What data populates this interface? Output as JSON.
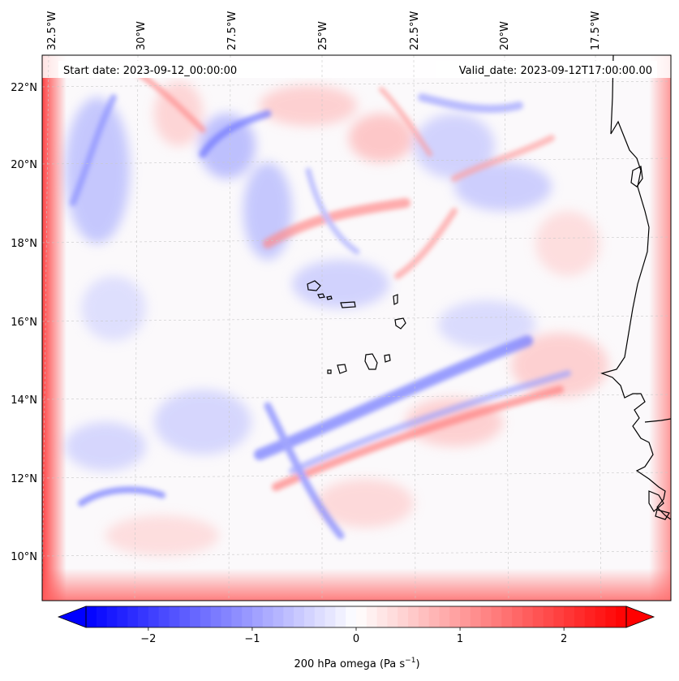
{
  "header": {
    "start_date": "Start date: 2023-09-12_00:00:00",
    "valid_date": "Valid_date: 2023-09-12T17:00:00.00"
  },
  "map": {
    "lon_labels": [
      "32.5°W",
      "30°W",
      "27.5°W",
      "25°W",
      "22.5°W",
      "20°W",
      "17.5°W"
    ],
    "lat_labels": [
      "22°N",
      "20°N",
      "18°N",
      "16°N",
      "14°N",
      "12°N",
      "10°N"
    ],
    "gridlines": "dashed-light-gray",
    "coastline_color": "#000000"
  },
  "colorbar": {
    "ticks": [
      "−2",
      "−1",
      "0",
      "1",
      "2"
    ],
    "tick_values": [
      -2,
      -1,
      0,
      1,
      2
    ],
    "range": [
      -2.6,
      2.6
    ],
    "extend": "both",
    "label_main": "200 hPa omega (Pa s",
    "label_sup": "−1",
    "label_end": ")",
    "colormap": "bwr",
    "color_min": "#0000ff",
    "color_mid": "#ffffff",
    "color_max": "#ff0000"
  }
}
